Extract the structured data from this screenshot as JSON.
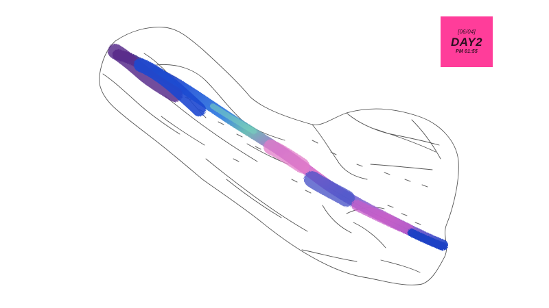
{
  "label": {
    "date": "[06/04]",
    "title": "DAY2",
    "time": "PM 01:55"
  },
  "artwork": {
    "subject": "pencil-outline-form-with-ink-stroke"
  },
  "colors": {
    "background": "#ffffff",
    "label_background": "#ff3d9a",
    "label_text": "#2a0f1f",
    "ink_blue": "#1f4fd6",
    "ink_purple": "#6b2fa8",
    "ink_pink": "#e066c4",
    "pencil": "#555555"
  }
}
